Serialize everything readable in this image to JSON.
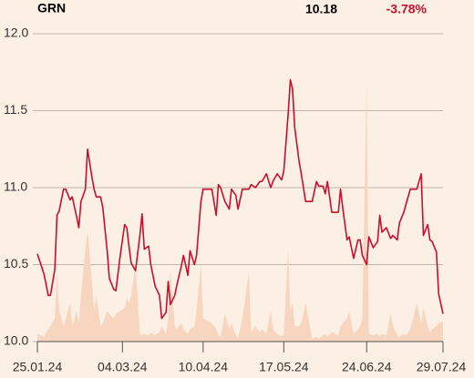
{
  "header": {
    "symbol": "GRN",
    "price": 10.18,
    "change": "-3.78%"
  },
  "chart_data": {
    "type": "line",
    "x": [
      "2024-01-25",
      "2024-01-28",
      "2024-01-30",
      "2024-01-31",
      "2024-02-02",
      "2024-02-03",
      "2024-02-04",
      "2024-02-06",
      "2024-02-07",
      "2024-02-09",
      "2024-02-10",
      "2024-02-12",
      "2024-02-13",
      "2024-02-14",
      "2024-02-16",
      "2024-02-17",
      "2024-02-19",
      "2024-02-20",
      "2024-02-21",
      "2024-02-23",
      "2024-02-24",
      "2024-02-26",
      "2024-02-27",
      "2024-02-29",
      "2024-03-01",
      "2024-03-03",
      "2024-03-05",
      "2024-03-06",
      "2024-03-07",
      "2024-03-08",
      "2024-03-10",
      "2024-03-12",
      "2024-03-13",
      "2024-03-14",
      "2024-03-16",
      "2024-03-17",
      "2024-03-19",
      "2024-03-21",
      "2024-03-22",
      "2024-03-24",
      "2024-03-25",
      "2024-03-26",
      "2024-03-28",
      "2024-03-29",
      "2024-03-31",
      "2024-04-01",
      "2024-04-03",
      "2024-04-04",
      "2024-04-06",
      "2024-04-07",
      "2024-04-09",
      "2024-04-10",
      "2024-04-14",
      "2024-04-16",
      "2024-04-17",
      "2024-04-18",
      "2024-04-20",
      "2024-04-22",
      "2024-04-23",
      "2024-04-25",
      "2024-04-26",
      "2024-04-28",
      "2024-05-01",
      "2024-05-02",
      "2024-05-04",
      "2024-05-06",
      "2024-05-07",
      "2024-05-09",
      "2024-05-11",
      "2024-05-12",
      "2024-05-14",
      "2024-05-16",
      "2024-05-17",
      "2024-05-19",
      "2024-05-20",
      "2024-05-21",
      "2024-05-22",
      "2024-05-24",
      "2024-05-25",
      "2024-05-27",
      "2024-05-30",
      "2024-06-01",
      "2024-06-02",
      "2024-06-04",
      "2024-06-05",
      "2024-06-06",
      "2024-06-08",
      "2024-06-11",
      "2024-06-12",
      "2024-06-13",
      "2024-06-15",
      "2024-06-16",
      "2024-06-18",
      "2024-06-20",
      "2024-06-21",
      "2024-06-22",
      "2024-06-24",
      "2024-06-25",
      "2024-06-27",
      "2024-06-29",
      "2024-06-30",
      "2024-07-01",
      "2024-07-03",
      "2024-07-05",
      "2024-07-06",
      "2024-07-08",
      "2024-07-09",
      "2024-07-11",
      "2024-07-12",
      "2024-07-14",
      "2024-07-17",
      "2024-07-19",
      "2024-07-20",
      "2024-07-22",
      "2024-07-23",
      "2024-07-24",
      "2024-07-26",
      "2024-07-27",
      "2024-07-29"
    ],
    "series": [
      {
        "color": "#c8102e",
        "values": [
          10.57,
          10.44,
          10.3,
          10.3,
          10.47,
          10.82,
          10.85,
          10.99,
          10.99,
          10.92,
          10.94,
          10.81,
          10.74,
          10.91,
          10.99,
          11.25,
          11.07,
          10.99,
          10.94,
          10.94,
          10.87,
          10.59,
          10.41,
          10.34,
          10.33,
          10.56,
          10.76,
          10.74,
          10.62,
          10.51,
          10.46,
          10.69,
          10.83,
          10.6,
          10.62,
          10.5,
          10.36,
          10.3,
          10.15,
          10.19,
          10.39,
          10.24,
          10.3,
          10.37,
          10.49,
          10.56,
          10.43,
          10.59,
          10.5,
          10.56,
          10.91,
          10.99,
          10.99,
          10.82,
          11.02,
          11.0,
          10.91,
          10.86,
          10.99,
          10.95,
          10.86,
          10.99,
          10.99,
          11.02,
          11.0,
          11.04,
          11.04,
          11.09,
          11.0,
          11.04,
          11.09,
          11.05,
          11.11,
          11.48,
          11.7,
          11.64,
          11.39,
          11.17,
          11.09,
          10.91,
          10.91,
          11.04,
          11.01,
          11.01,
          10.96,
          11.04,
          10.84,
          10.84,
          10.99,
          10.87,
          10.66,
          10.68,
          10.54,
          10.66,
          10.66,
          10.56,
          10.5,
          10.68,
          10.61,
          10.65,
          10.82,
          10.71,
          10.74,
          10.67,
          10.69,
          10.66,
          10.77,
          10.84,
          10.89,
          10.99,
          10.99,
          11.09,
          10.69,
          10.76,
          10.66,
          10.65,
          10.58,
          10.31,
          10.18
        ]
      },
      {
        "type": "area",
        "color": "#f8d5bf",
        "values": [
          10.05,
          10.03,
          10.08,
          10.1,
          10.15,
          10.45,
          10.2,
          10.1,
          10.15,
          10.25,
          10.1,
          10.2,
          10.12,
          10.3,
          10.6,
          10.72,
          10.4,
          10.2,
          10.3,
          10.1,
          10.12,
          10.2,
          10.18,
          10.15,
          10.18,
          10.2,
          10.22,
          10.28,
          10.25,
          10.3,
          10.5,
          10.05,
          10.04,
          10.05,
          10.04,
          10.06,
          10.04,
          10.06,
          10.1,
          10.05,
          10.15,
          10.45,
          10.1,
          10.08,
          10.12,
          10.08,
          10.05,
          10.08,
          10.1,
          10.2,
          10.5,
          10.15,
          10.12,
          10.08,
          10.04,
          10.03,
          10.18,
          10.08,
          10.12,
          10.04,
          10.02,
          10.15,
          10.45,
          10.06,
          10.1,
          10.06,
          10.08,
          10.05,
          10.2,
          10.08,
          10.05,
          10.03,
          10.05,
          10.6,
          10.2,
          10.25,
          10.1,
          10.1,
          10.12,
          10.25,
          10.02,
          10.03,
          10.02,
          10.04,
          10.05,
          10.03,
          10.06,
          10.04,
          10.1,
          10.12,
          10.15,
          10.2,
          10.05,
          10.08,
          10.1,
          10.15,
          11.68,
          10.05,
          10.04,
          10.05,
          10.03,
          10.05,
          10.04,
          10.18,
          10.1,
          10.04,
          10.03,
          10.05,
          10.04,
          10.08,
          10.25,
          10.12,
          10.22,
          10.1,
          10.06,
          10.08,
          10.1,
          10.12,
          10.13
        ]
      }
    ],
    "ylim": [
      10,
      12
    ],
    "yticks": [
      {
        "value": 10,
        "label": "10.0"
      },
      {
        "value": 10.5,
        "label": "10.5"
      },
      {
        "value": 11,
        "label": "11.0"
      },
      {
        "value": 11.5,
        "label": "11.5"
      },
      {
        "value": 12,
        "label": "12.0"
      }
    ],
    "xlim": [
      "2024-01-25",
      "2024-07-29"
    ],
    "xticks": [
      {
        "value": "2024-01-25",
        "label": "25.01.24"
      },
      {
        "value": "2024-03-04",
        "label": "04.03.24"
      },
      {
        "value": "2024-04-10",
        "label": "10.04.24"
      },
      {
        "value": "2024-05-17",
        "label": "17.05.24"
      },
      {
        "value": "2024-06-24",
        "label": "24.06.24"
      },
      {
        "value": "2024-07-29",
        "label": "29.07.24"
      }
    ],
    "grid": true
  }
}
